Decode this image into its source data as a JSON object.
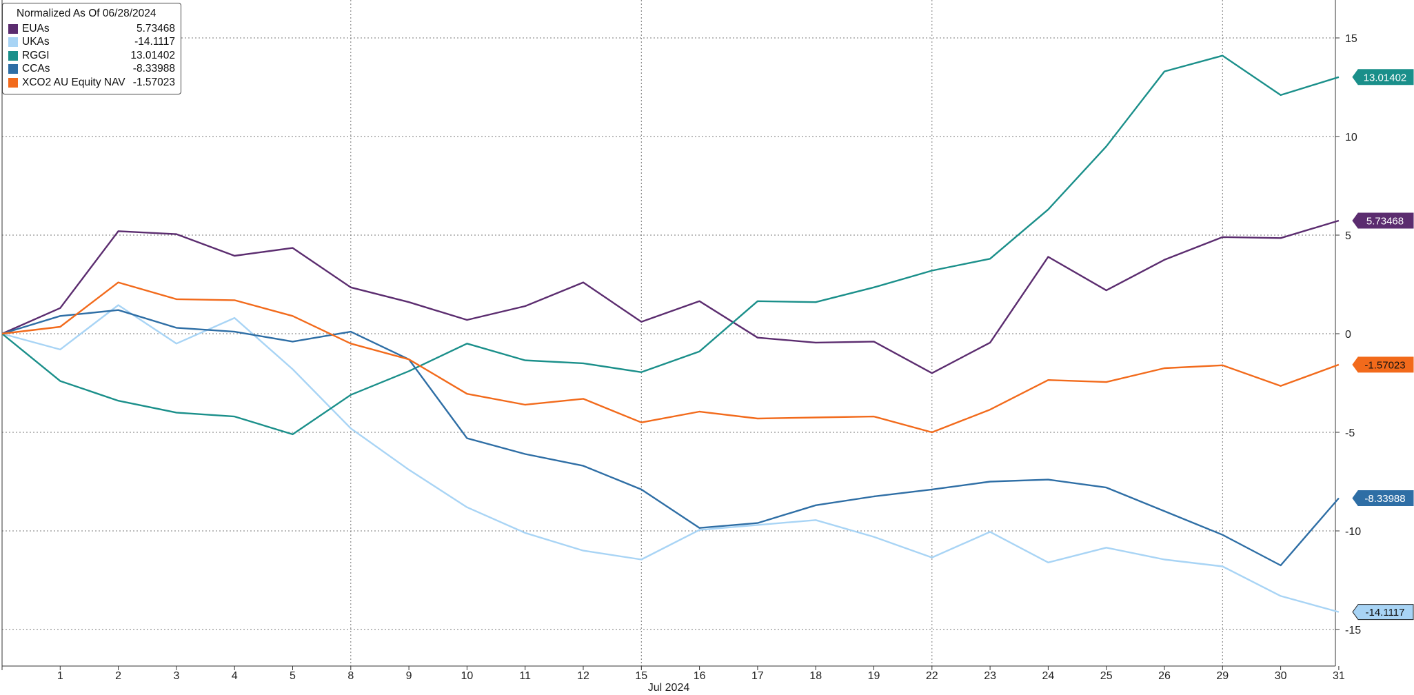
{
  "chart_data": {
    "type": "line",
    "legend_title": "Normalized As Of 06/28/2024",
    "month_label": "Jul 2024",
    "categories": [
      "",
      "1",
      "2",
      "3",
      "4",
      "5",
      "8",
      "9",
      "10",
      "11",
      "12",
      "15",
      "16",
      "17",
      "18",
      "19",
      "22",
      "23",
      "24",
      "25",
      "26",
      "29",
      "30",
      "31"
    ],
    "ylim": [
      -16.5,
      17
    ],
    "yticks": [
      15,
      10,
      5,
      0,
      -5,
      -10,
      -15
    ],
    "ytick_labels": [
      "15",
      "10",
      "5",
      "0",
      "-5",
      "-10",
      "-15"
    ],
    "grid": true,
    "legend_position": "top-left",
    "series": [
      {
        "name": "EUAs",
        "last_label": "5.73468",
        "color": "#5b2c6f",
        "values": [
          0,
          1.3,
          5.2,
          5.05,
          3.95,
          4.35,
          2.35,
          1.6,
          0.7,
          1.4,
          2.6,
          0.6,
          1.65,
          -0.2,
          -0.45,
          -0.4,
          -2.0,
          -0.45,
          3.9,
          2.2,
          3.75,
          4.9,
          4.85,
          5.73468
        ]
      },
      {
        "name": "UKAs",
        "last_label": "-14.1117",
        "color": "#a8d4f5",
        "values": [
          0,
          -0.8,
          1.45,
          -0.5,
          0.8,
          -1.8,
          -4.8,
          -6.9,
          -8.8,
          -10.1,
          -11.0,
          -11.45,
          -9.95,
          -9.7,
          -9.45,
          -10.3,
          -11.35,
          -10.05,
          -11.6,
          -10.85,
          -11.45,
          -11.8,
          -13.3,
          -14.1117
        ]
      },
      {
        "name": "RGGI",
        "last_label": "13.01402",
        "color": "#1a8f8a",
        "values": [
          0,
          -2.4,
          -3.4,
          -4.0,
          -4.2,
          -5.1,
          -3.1,
          -1.9,
          -0.5,
          -1.35,
          -1.5,
          -1.95,
          -0.9,
          1.65,
          1.6,
          2.35,
          3.2,
          3.8,
          6.3,
          9.5,
          13.3,
          14.1,
          12.1,
          13.01402
        ]
      },
      {
        "name": "CCAs",
        "last_label": "-8.33988",
        "color": "#2e6ea5",
        "values": [
          0,
          0.9,
          1.2,
          0.3,
          0.1,
          -0.4,
          0.1,
          -1.3,
          -5.3,
          -6.1,
          -6.7,
          -7.9,
          -9.85,
          -9.6,
          -8.7,
          -8.25,
          -7.9,
          -7.5,
          -7.4,
          -7.8,
          -9.0,
          -10.2,
          -11.75,
          -8.33988
        ]
      },
      {
        "name": "XCO2 AU Equity NAV",
        "last_label": "-1.57023",
        "color": "#f26a1b",
        "values": [
          0,
          0.35,
          2.6,
          1.75,
          1.7,
          0.9,
          -0.5,
          -1.3,
          -3.05,
          -3.6,
          -3.3,
          -4.5,
          -3.95,
          -4.3,
          -4.25,
          -4.2,
          -5.0,
          -3.85,
          -2.35,
          -2.45,
          -1.75,
          -1.6,
          -2.65,
          -1.57023
        ]
      }
    ]
  }
}
